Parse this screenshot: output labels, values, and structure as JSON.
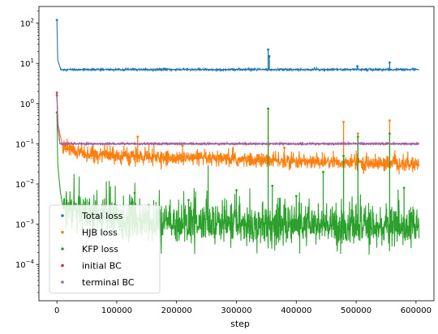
{
  "chart_data": {
    "type": "scatter",
    "title": "",
    "xlabel": "step",
    "ylabel": "",
    "yscale": "log",
    "xlim": [
      -30000,
      630000
    ],
    "ylim": [
      1.25e-05,
      260
    ],
    "x_ticks": [
      0,
      100000,
      200000,
      300000,
      400000,
      500000,
      600000
    ],
    "x_tick_labels": [
      "0",
      "100000",
      "200000",
      "300000",
      "400000",
      "500000",
      "600000"
    ],
    "y_ticks": [
      0.0001,
      0.001,
      0.01,
      0.1,
      1,
      10,
      100
    ],
    "y_tick_labels": [
      {
        "base": "10",
        "exp": "−4"
      },
      {
        "base": "10",
        "exp": "−3"
      },
      {
        "base": "10",
        "exp": "−2"
      },
      {
        "base": "10",
        "exp": "−1"
      },
      {
        "base": "10",
        "exp": "0"
      },
      {
        "base": "10",
        "exp": "1"
      },
      {
        "base": "10",
        "exp": "2"
      }
    ],
    "grid": false,
    "legend_position": "lower-left",
    "x_max_step": 605000,
    "series": [
      {
        "name": "Total loss",
        "color": "#1f77b4",
        "baseline": 7.0,
        "noise": 0.012,
        "decay": [
          [
            0,
            120
          ],
          [
            1500,
            12
          ],
          [
            6000,
            7.5
          ]
        ],
        "spikes": [
          [
            353000,
            22
          ],
          [
            355000,
            15
          ],
          [
            502000,
            8.5
          ],
          [
            556000,
            10.5
          ]
        ]
      },
      {
        "name": "HJB loss",
        "color": "#ff7f0e",
        "baseline_points": [
          [
            10000,
            0.085
          ],
          [
            50000,
            0.055
          ],
          [
            150000,
            0.045
          ],
          [
            300000,
            0.04
          ],
          [
            450000,
            0.035
          ],
          [
            605000,
            0.03
          ]
        ],
        "noise": 0.09,
        "decay": [
          [
            0,
            1.8
          ],
          [
            2000,
            0.3
          ],
          [
            6000,
            0.15
          ],
          [
            10000,
            0.085
          ]
        ],
        "spikes": [
          [
            135000,
            0.15
          ],
          [
            210000,
            0.09
          ],
          [
            353000,
            0.75
          ],
          [
            380000,
            0.08
          ],
          [
            479000,
            0.35
          ],
          [
            503000,
            0.18
          ],
          [
            556000,
            0.38
          ]
        ]
      },
      {
        "name": "KFP loss",
        "color": "#2ca02c",
        "baseline_points": [
          [
            10000,
            0.0028
          ],
          [
            40000,
            0.0018
          ],
          [
            150000,
            0.0011
          ],
          [
            300000,
            0.001
          ],
          [
            450000,
            0.0009
          ],
          [
            605000,
            0.00085
          ]
        ],
        "noise": 0.25,
        "decay": [
          [
            0,
            0.6
          ],
          [
            1500,
            0.03
          ],
          [
            6000,
            0.006
          ],
          [
            10000,
            0.0028
          ]
        ],
        "spikes": [
          [
            130000,
            0.006
          ],
          [
            220000,
            0.004
          ],
          [
            300000,
            0.007
          ],
          [
            353000,
            0.75
          ],
          [
            360000,
            0.009
          ],
          [
            400000,
            0.005
          ],
          [
            445000,
            0.02
          ],
          [
            479000,
            0.05
          ],
          [
            503000,
            0.15
          ],
          [
            556000,
            0.18
          ],
          [
            580000,
            0.008
          ]
        ]
      },
      {
        "name": "initial BC",
        "color": "#d62728",
        "baseline": 0.1,
        "noise": 0.008,
        "decay": [
          [
            0,
            1.6
          ],
          [
            1500,
            0.3
          ],
          [
            5000,
            0.1
          ]
        ],
        "spikes": []
      },
      {
        "name": "terminal BC",
        "color": "#9467bd",
        "baseline": 0.1,
        "noise": 0.008,
        "decay": [
          [
            0,
            1.9
          ],
          [
            1500,
            0.35
          ],
          [
            5000,
            0.1
          ]
        ],
        "spikes": []
      }
    ]
  }
}
